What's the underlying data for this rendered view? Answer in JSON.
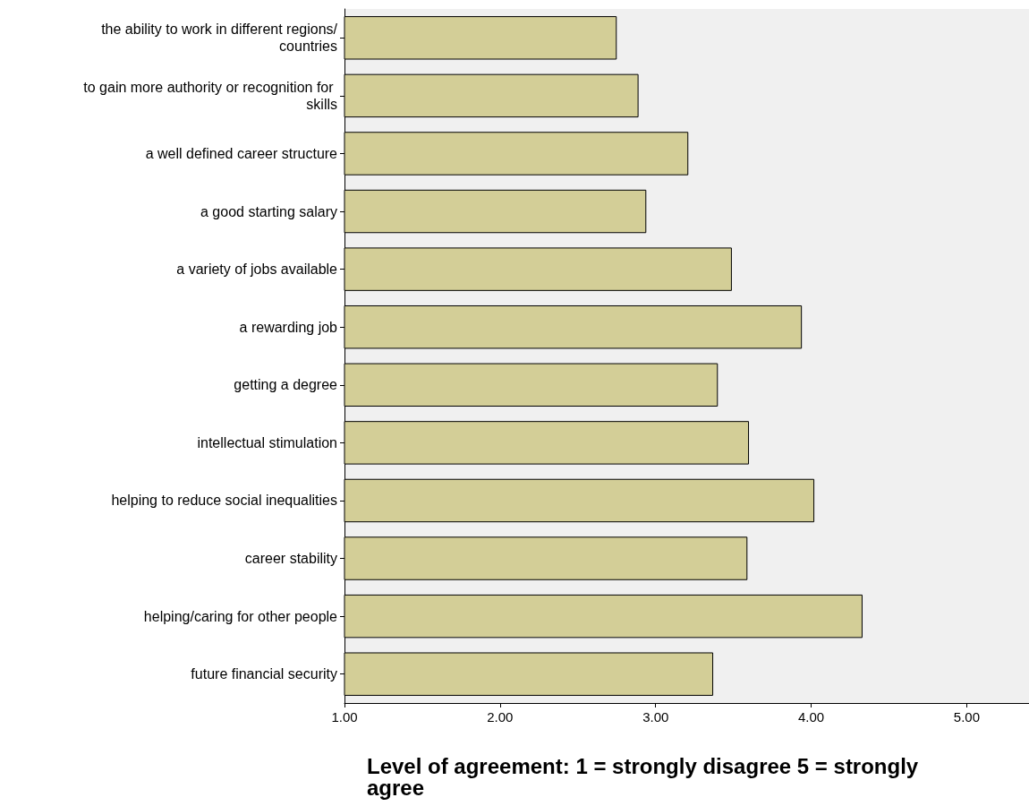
{
  "chart_data": {
    "type": "bar",
    "orientation": "horizontal",
    "xlabel": "Level of agreement: 1 = strongly disagree 5 = strongly agree",
    "categories": [
      "the ability to work in different regions/countries",
      "to gain more authority or recognition for skills",
      "a well defined career structure",
      "a good starting salary",
      "a variety of jobs available",
      "a rewarding job",
      "getting a degree",
      "intellectual stimulation",
      "helping to reduce social inequalities",
      "career stability",
      "helping/caring for other people",
      "future financial security"
    ],
    "values": [
      2.75,
      2.89,
      3.21,
      2.94,
      3.49,
      3.94,
      3.4,
      3.6,
      4.02,
      3.59,
      4.33,
      3.37
    ],
    "color": "#d3ce97",
    "xlim": [
      1,
      5.4
    ],
    "xticks": [
      {
        "value": 1,
        "label": "1.00"
      },
      {
        "value": 2,
        "label": "2.00"
      },
      {
        "value": 3,
        "label": "3.00"
      },
      {
        "value": 4,
        "label": "4.00"
      },
      {
        "value": 5,
        "label": "5.00"
      }
    ],
    "grid": false
  }
}
